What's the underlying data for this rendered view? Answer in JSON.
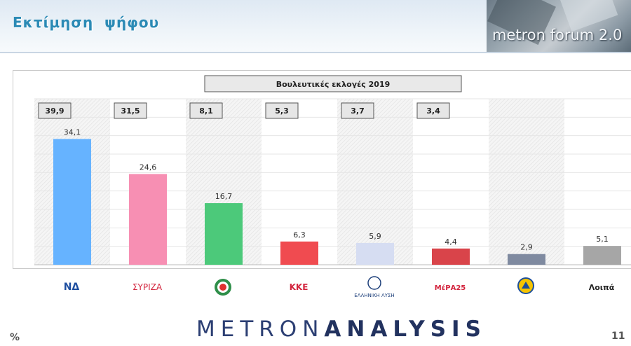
{
  "header": {
    "title": "Εκτίμηση ψήφου",
    "forum_logo": "metron forum 2.0"
  },
  "footer": {
    "percent_sign": "%",
    "brand_left": "METRON",
    "brand_right": "ANALYSIS",
    "page_number": "11"
  },
  "colors": {
    "nd": "#66b3ff",
    "syriza": "#f78fb3",
    "kinal": "#4cc97a",
    "kke": "#f04b50",
    "elliniki_lysi": "#d6ddf2",
    "mera25": "#d9444a",
    "niki": "#7f8aa0",
    "other": "#a6a6a6"
  },
  "chart_data": {
    "type": "bar",
    "title": "Βουλευτικές εκλογές 2019",
    "categories": [
      "ΝΔ",
      "ΣΥΡΙΖΑ",
      "ΠΑΣΟΚ-ΚΙΝΑΛ",
      "ΚΚΕ",
      "ΕΛΛΗΝΙΚΗ ΛΥΣΗ",
      "ΜέΡΑ25",
      "ΝΙΚΗ",
      "Λοιπά"
    ],
    "series": [
      {
        "values": [
          34.1,
          24.6,
          16.7,
          6.3,
          5.9,
          4.4,
          2.9,
          5.1
        ]
      }
    ],
    "election_2019": [
      39.9,
      31.5,
      8.1,
      5.3,
      3.7,
      3.4,
      null,
      null
    ],
    "value_labels": [
      "34,1",
      "24,6",
      "16,7",
      "6,3",
      "5,9",
      "4,4",
      "2,9",
      "5,1"
    ],
    "election_labels": [
      "39,9",
      "31,5",
      "8,1",
      "5,3",
      "3,7",
      "3,4",
      "",
      ""
    ],
    "logo_labels": [
      "ΝΔ",
      "ΣΥΡΙΖΑ",
      "",
      "ΚΚΕ",
      "ΕΛΛΗΝΙΚΗ ΛΥΣΗ",
      "ΜέΡΑ25",
      "",
      "Λοιπά"
    ],
    "ylim": [
      0,
      45
    ],
    "grid": true,
    "xlabel": "",
    "ylabel": ""
  }
}
